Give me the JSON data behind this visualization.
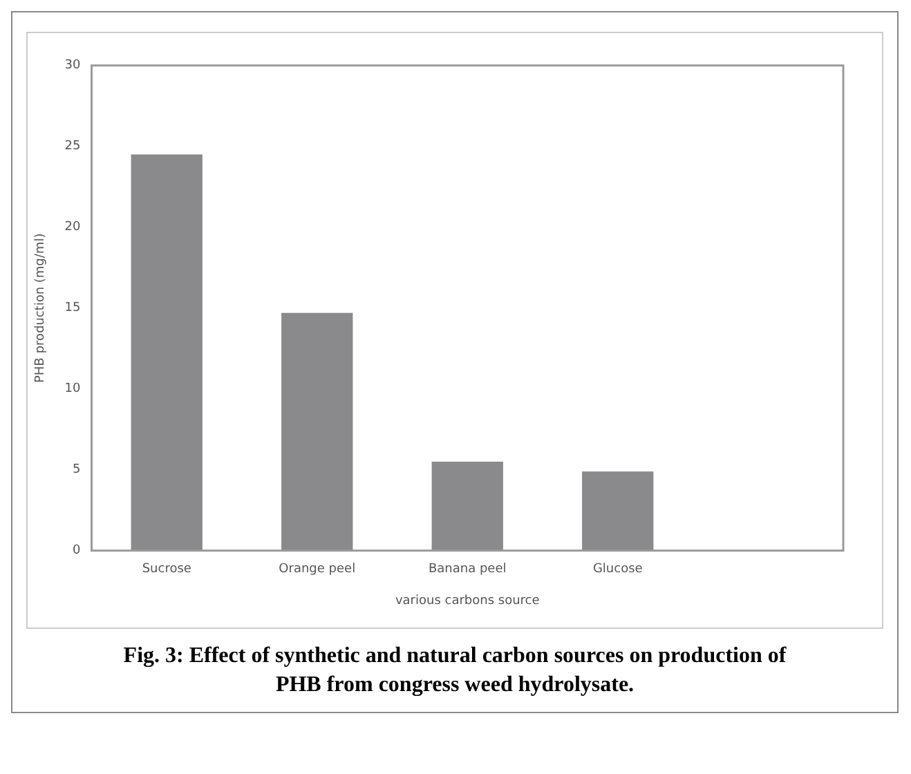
{
  "chart_data": {
    "type": "bar",
    "xlabel": "various carbons source",
    "ylabel": "PHB production (mg/ml)",
    "categories": [
      "Sucrose",
      "Orange peel",
      "Banana peel",
      "Glucose",
      null
    ],
    "values": [
      24.5,
      14.7,
      5.5,
      4.9,
      null
    ],
    "color": "#8a8a8c",
    "ylim": [
      0,
      30
    ],
    "yticks": [
      0,
      5,
      10,
      15,
      20,
      25,
      30
    ],
    "grid": false,
    "legend": false,
    "annotations": [
      "Fig. 3: Effect of synthetic and natural carbon sources on production of PHB from congress weed hydrolysate."
    ]
  }
}
